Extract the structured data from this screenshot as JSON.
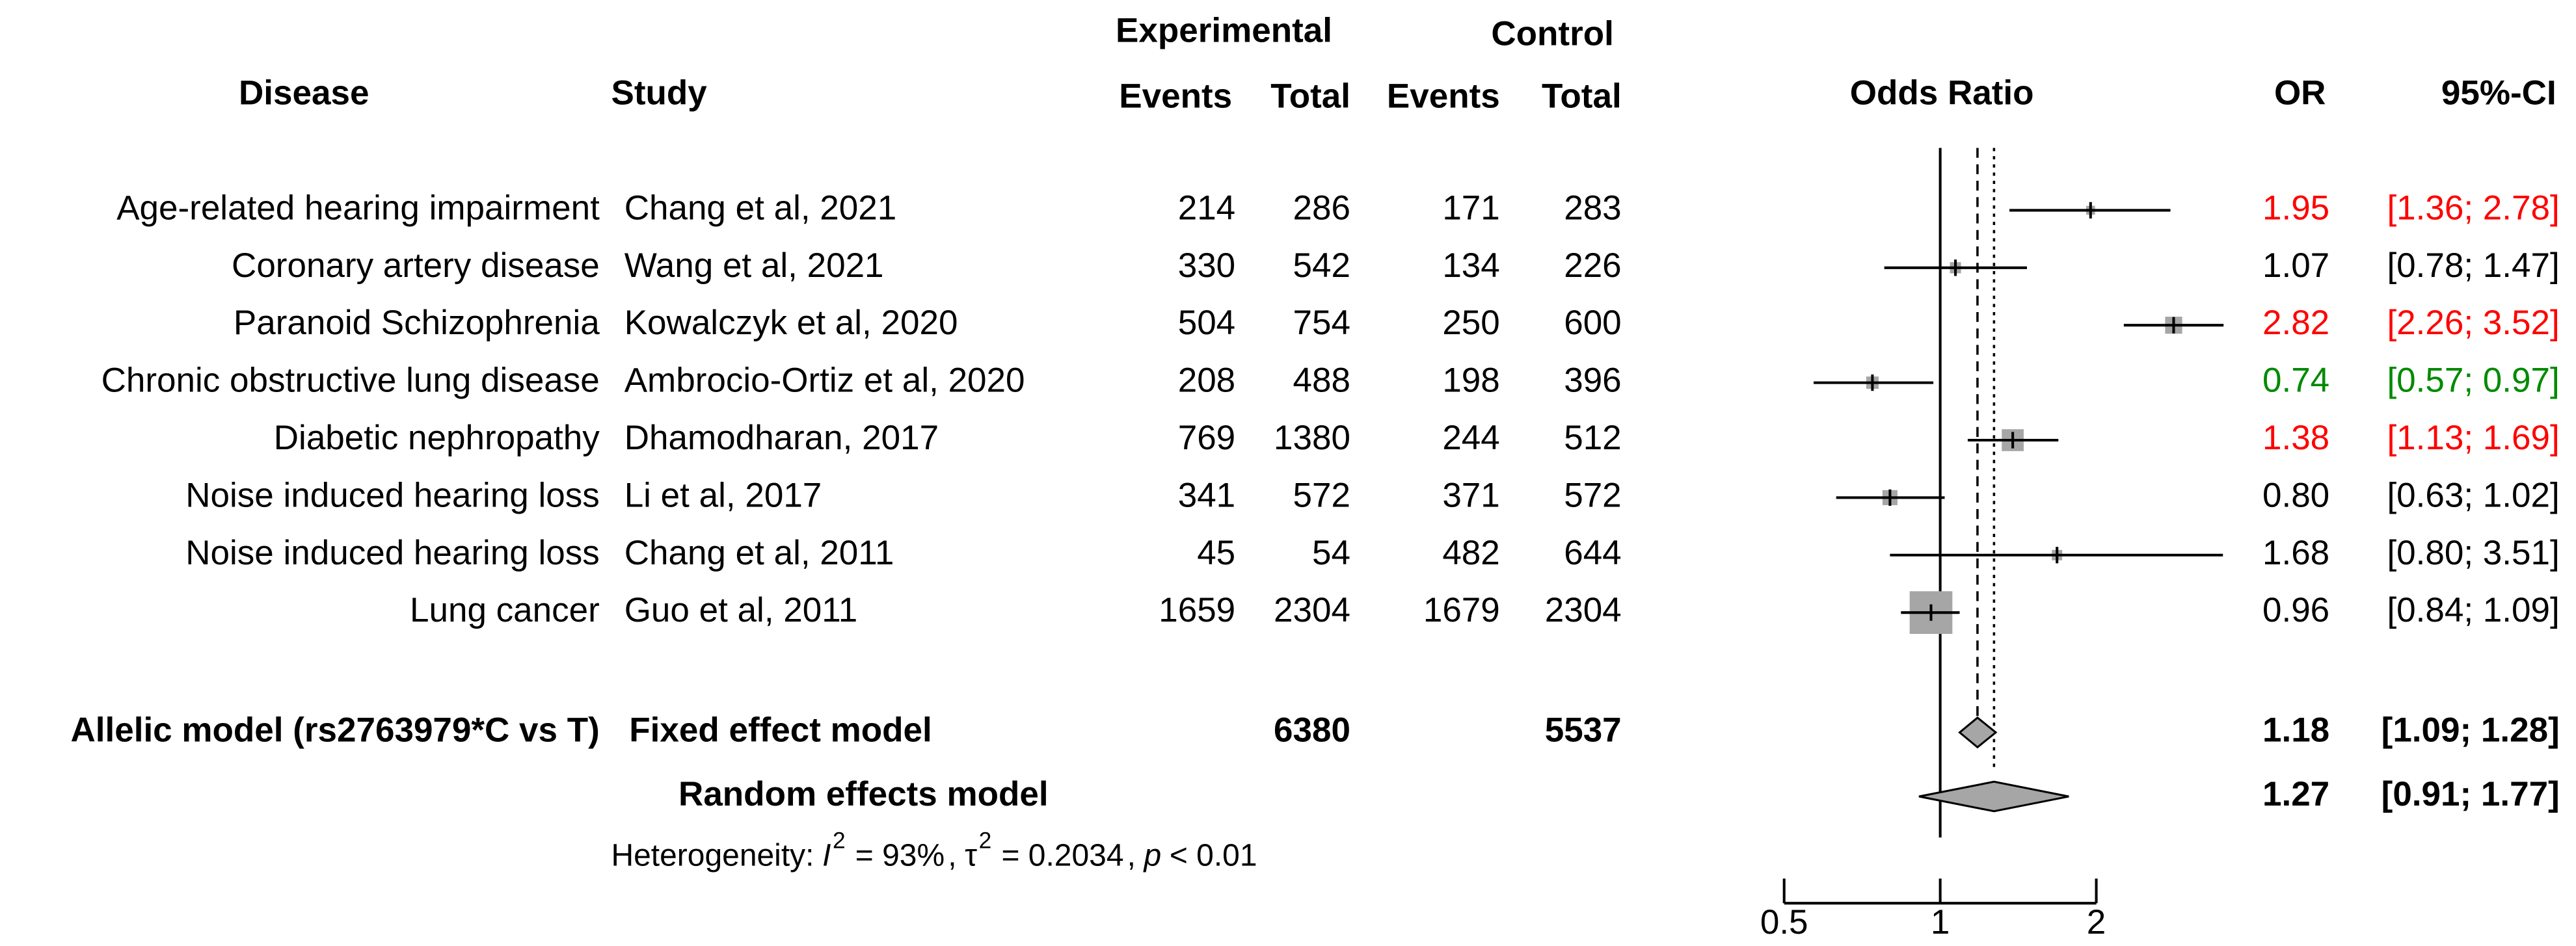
{
  "chart_data": {
    "type": "forest",
    "headers": {
      "group_experimental": "Experimental",
      "group_control": "Control",
      "disease": "Disease",
      "study": "Study",
      "exp_events": "Events",
      "exp_total": "Total",
      "ctrl_events": "Events",
      "ctrl_total": "Total",
      "plot": "Odds Ratio",
      "or": "OR",
      "ci": "95%-CI"
    },
    "disease": [
      "Age-related hearing impairment",
      "Coronary artery disease",
      "Paranoid Schizophrenia",
      "Chronic obstructive lung disease",
      "Diabetic nephropathy",
      "Noise induced hearing loss",
      "Noise induced hearing loss",
      "Lung cancer"
    ],
    "study": [
      "Chang et al, 2021",
      "Wang et al, 2021",
      "Kowalczyk et al, 2020",
      "Ambrocio-Ortiz et al, 2020",
      "Dhamodharan, 2017",
      "Li et al, 2017",
      "Chang et al, 2011",
      "Guo et al, 2011"
    ],
    "exp_events": [
      214,
      330,
      504,
      208,
      769,
      341,
      45,
      1659
    ],
    "exp_total": [
      286,
      542,
      754,
      488,
      1380,
      572,
      54,
      2304
    ],
    "ctrl_events": [
      171,
      134,
      250,
      198,
      244,
      371,
      482,
      1679
    ],
    "ctrl_total": [
      283,
      226,
      600,
      396,
      512,
      572,
      644,
      2304
    ],
    "or": [
      1.95,
      1.07,
      2.82,
      0.74,
      1.38,
      0.8,
      1.68,
      0.96
    ],
    "or_labels": [
      "1.95",
      "1.07",
      "2.82",
      "0.74",
      "1.38",
      "0.80",
      "1.68",
      "0.96"
    ],
    "ci_low": [
      1.36,
      0.78,
      2.26,
      0.57,
      1.13,
      0.63,
      0.8,
      0.84
    ],
    "ci_high": [
      2.78,
      1.47,
      3.52,
      0.97,
      1.69,
      1.02,
      3.51,
      1.09
    ],
    "ci_labels": [
      "[1.36; 2.78]",
      "[0.78; 1.47]",
      "[2.26; 3.52]",
      "[0.57; 0.97]",
      "[1.13; 1.69]",
      "[0.63; 1.02]",
      "[0.80; 3.51]",
      "[0.84; 1.09]"
    ],
    "colors": [
      "#ff0000",
      "#000000",
      "#ff0000",
      "#008a00",
      "#ff0000",
      "#000000",
      "#000000",
      "#000000"
    ],
    "summary": {
      "label": "Allelic model (rs2763979*C vs T)",
      "models": [
        {
          "name": "Fixed effect model",
          "exp_total": 6380,
          "ctrl_total": 5537,
          "or": 1.18,
          "ci_low": 1.09,
          "ci_high": 1.28,
          "ci_label": "[1.09; 1.28]",
          "line": "dashed"
        },
        {
          "name": "Random effects model",
          "or": 1.27,
          "ci_low": 0.91,
          "ci_high": 1.77,
          "ci_label": "[0.91; 1.77]",
          "line": "dotted"
        }
      ],
      "color": "#a6a6a6"
    },
    "heterogeneity": [
      "Heterogeneity:",
      "I",
      "2",
      "= 93%",
      ",",
      "τ",
      "2",
      "= 0.2034",
      ",",
      "p",
      "< 0.01"
    ],
    "marker_color": "#a6a6a6",
    "xscale": "log",
    "xlim": [
      0.5,
      2
    ],
    "xticks": [
      0.5,
      1,
      2
    ]
  }
}
